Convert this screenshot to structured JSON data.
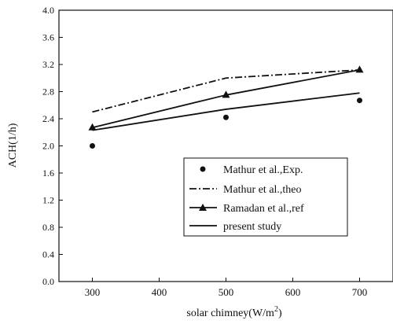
{
  "chart_data": {
    "type": "line",
    "xlabel": "solar chimney(W/m",
    "xlabel_sup": "2",
    "xlabel_suffix": ")",
    "ylabel": "ACH(1/h)",
    "xlim": [
      250,
      750
    ],
    "ylim": [
      0.0,
      4.0
    ],
    "x_ticks": [
      "300",
      "400",
      "500",
      "600",
      "700"
    ],
    "y_ticks": [
      "0.0",
      "0.4",
      "0.8",
      "1.2",
      "1.6",
      "2.0",
      "2.4",
      "2.8",
      "3.2",
      "3.6",
      "4.0"
    ],
    "legend_position": "lower-right",
    "series": [
      {
        "name": "Mathur et al.,Exp.",
        "style": "markers",
        "marker": "circle",
        "x": [
          300,
          500,
          700
        ],
        "y": [
          2.0,
          2.42,
          2.67
        ]
      },
      {
        "name": "Mathur et al.,theo",
        "style": "dash-dot",
        "marker": "none",
        "x": [
          300,
          500,
          700
        ],
        "y": [
          2.5,
          3.0,
          3.12
        ]
      },
      {
        "name": "Ramadan et al.,ref",
        "style": "solid",
        "marker": "triangle",
        "x": [
          300,
          500,
          700
        ],
        "y": [
          2.27,
          2.75,
          3.12
        ]
      },
      {
        "name": "present study",
        "style": "solid",
        "marker": "none",
        "x": [
          300,
          500,
          700
        ],
        "y": [
          2.23,
          2.54,
          2.78
        ]
      }
    ]
  }
}
